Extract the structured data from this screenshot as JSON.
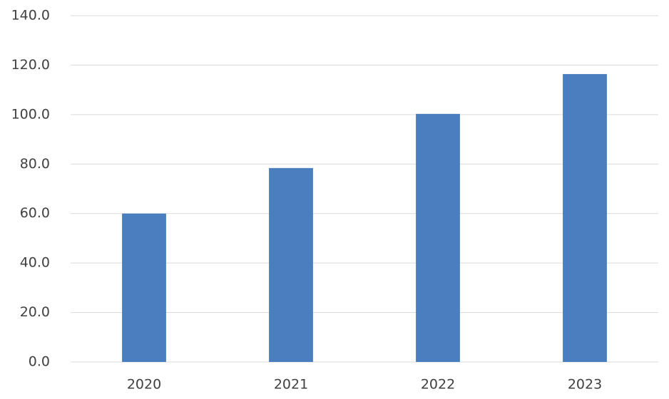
{
  "chart_data": {
    "type": "bar",
    "categories": [
      "2020",
      "2021",
      "2022",
      "2023"
    ],
    "values": [
      60,
      78.4,
      100.3,
      116.4
    ],
    "color": "#4a7ebf",
    "ylim": [
      0,
      140
    ],
    "yticks": [
      {
        "value": 0,
        "label": "0.0"
      },
      {
        "value": 20,
        "label": "20.0"
      },
      {
        "value": 40,
        "label": "40.0"
      },
      {
        "value": 60,
        "label": "60.0"
      },
      {
        "value": 80,
        "label": "80.0"
      },
      {
        "value": 100,
        "label": "100.0"
      },
      {
        "value": 120,
        "label": "120.0"
      },
      {
        "value": 140,
        "label": "140.0"
      }
    ],
    "grid": true
  }
}
